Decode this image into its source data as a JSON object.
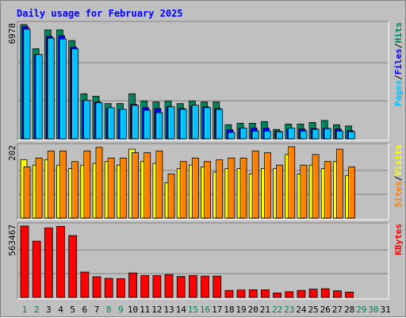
{
  "chart_data": {
    "type": "bar",
    "title": "Daily usage for February 2025",
    "colors": {
      "background": "#c0c0c0",
      "title": "#0000ff",
      "hits": "#00805c",
      "files": "#0000ff",
      "pages": "#00c0ff",
      "visits": "#ffff00",
      "sites": "#ff8000",
      "kbytes": "#ff0000",
      "weekend_label": "#00805c",
      "weekday_label": "#000000"
    },
    "x": [
      "1",
      "2",
      "3",
      "4",
      "5",
      "6",
      "7",
      "8",
      "9",
      "10",
      "11",
      "12",
      "13",
      "14",
      "15",
      "16",
      "17",
      "18",
      "19",
      "20",
      "21",
      "22",
      "23",
      "24",
      "25",
      "26",
      "27",
      "28",
      "29",
      "30",
      "31"
    ],
    "weekend_days": [
      "1",
      "2",
      "8",
      "9",
      "15",
      "16",
      "22",
      "23",
      "29",
      "30"
    ],
    "panels": [
      {
        "name": "usage",
        "max_label": "6978",
        "ylim": [
          0,
          6978
        ],
        "legend": {
          "labels": [
            "Pages",
            "Files",
            "Hits"
          ],
          "separators": [
            "/",
            "/"
          ]
        },
        "series": [
          {
            "name": "Hits",
            "values": [
              6978,
              5500,
              6650,
              6650,
              6000,
              2750,
              2600,
              2150,
              2150,
              2750,
              2300,
              2250,
              2300,
              2150,
              2300,
              2250,
              2250,
              860,
              950,
              950,
              1050,
              570,
              900,
              900,
              1000,
              1120,
              860,
              780,
              0,
              0,
              0
            ]
          },
          {
            "name": "Files",
            "values": [
              6850,
              5150,
              6250,
              6300,
              5600,
              2350,
              2250,
              1850,
              1800,
              2100,
              1900,
              1850,
              1950,
              1850,
              2000,
              1950,
              1850,
              550,
              650,
              650,
              650,
              470,
              600,
              600,
              620,
              640,
              600,
              500,
              0,
              0,
              0
            ]
          },
          {
            "name": "Pages",
            "values": [
              6700,
              5150,
              6150,
              6100,
              5500,
              2350,
              2200,
              1900,
              1800,
              2050,
              1750,
              1600,
              1950,
              1800,
              2050,
              1900,
              1800,
              390,
              650,
              470,
              470,
              430,
              650,
              470,
              580,
              620,
              470,
              430,
              0,
              0,
              0
            ]
          }
        ]
      },
      {
        "name": "visitors",
        "max_label": "202",
        "ylim": [
          0,
          202
        ],
        "legend": {
          "labels": [
            "Sites",
            "Visits"
          ],
          "separators": [
            "/"
          ]
        },
        "series": [
          {
            "name": "Visits",
            "values": [
              165,
              150,
              165,
              150,
              140,
              150,
              155,
              160,
              150,
              195,
              160,
              155,
              100,
              140,
              150,
              145,
              130,
              140,
              140,
              125,
              140,
              140,
              180,
              125,
              150,
              140,
              160,
              120,
              0,
              0,
              0
            ]
          },
          {
            "name": "Sites",
            "values": [
              145,
              170,
              190,
              190,
              160,
              190,
              200,
              170,
              170,
              185,
              185,
              190,
              125,
              160,
              170,
              160,
              165,
              170,
              170,
              190,
              185,
              150,
              202,
              150,
              180,
              160,
              195,
              145,
              0,
              0,
              0
            ]
          }
        ]
      },
      {
        "name": "traffic",
        "max_label": "563467",
        "ylim": [
          0,
          563467
        ],
        "legend": {
          "labels": [
            "KBytes"
          ],
          "separators": []
        },
        "series": [
          {
            "name": "KBytes",
            "values": [
              563467,
              444000,
              548000,
              560000,
              488000,
              200000,
              163000,
              150000,
              148000,
              193000,
              172000,
              172000,
              180000,
              165000,
              172000,
              168000,
              168000,
              55000,
              58000,
              60000,
              60000,
              35000,
              45000,
              55000,
              65000,
              68000,
              52000,
              42000,
              0,
              0,
              0
            ]
          }
        ]
      }
    ]
  }
}
